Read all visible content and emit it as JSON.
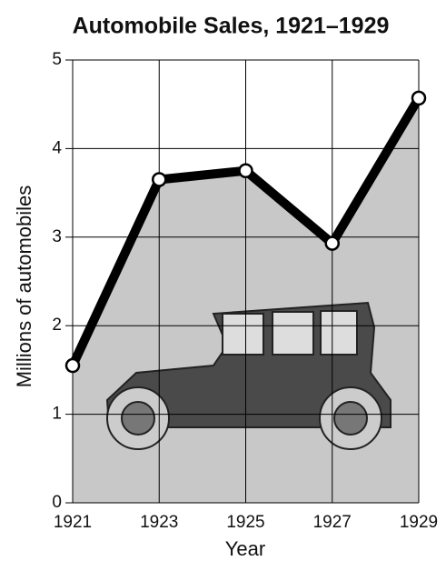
{
  "chart_data": {
    "type": "line",
    "title": "Automobile Sales, 1921–1929",
    "x_label": "Year",
    "y_label": "Millions of automobiles",
    "x": [
      1921,
      1923,
      1925,
      1927,
      1929
    ],
    "series": [
      {
        "color": "#000000",
        "values": [
          1.55,
          3.65,
          3.75,
          2.93,
          4.57
        ]
      }
    ],
    "area_color": "#c8c8c8",
    "xlim": [
      1921,
      1929
    ],
    "xticks": [
      1921,
      1923,
      1925,
      1927,
      1929
    ],
    "ylim": [
      0,
      5
    ],
    "yticks": [
      0,
      1,
      2,
      3,
      4,
      5
    ],
    "grid": true
  }
}
